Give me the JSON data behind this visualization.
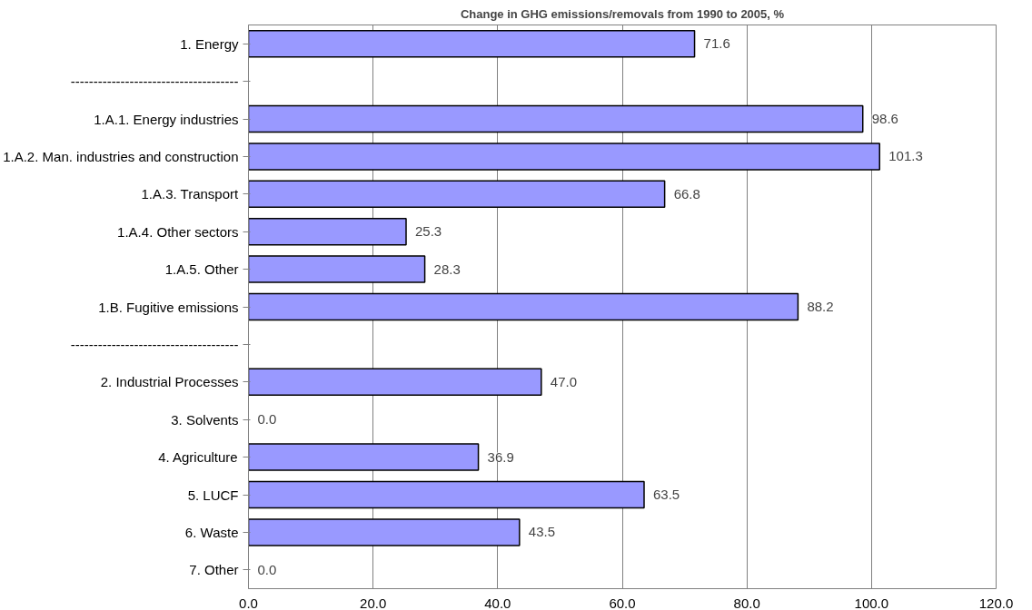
{
  "chart_data": {
    "type": "bar",
    "orientation": "horizontal",
    "title": "Change in GHG emissions/removals from 1990 to 2005, %",
    "categories": [
      "1. Energy",
      "-------------------------------------",
      "1.A.1. Energy industries",
      "1.A.2. Man. industries and construction",
      "1.A.3. Transport",
      "1.A.4. Other sectors",
      "1.A.5. Other",
      "1.B. Fugitive emissions",
      "-------------------------------------",
      "2. Industrial Processes",
      "3. Solvents",
      "4. Agriculture",
      "5. LUCF",
      "6. Waste",
      "7. Other"
    ],
    "values": [
      71.6,
      null,
      98.6,
      101.3,
      66.8,
      25.3,
      28.3,
      88.2,
      null,
      47.0,
      0.0,
      36.9,
      63.5,
      43.5,
      0.0
    ],
    "value_labels": [
      "71.6",
      null,
      "98.6",
      "101.3",
      "66.8",
      "25.3",
      "28.3",
      "88.2",
      null,
      "47.0",
      "0.0",
      "36.9",
      "63.5",
      "43.5",
      "0.0"
    ],
    "color": "#9999ff",
    "xlim": [
      0,
      120
    ],
    "xticks": [
      {
        "value": 0,
        "label": "0.0"
      },
      {
        "value": 20,
        "label": "20.0"
      },
      {
        "value": 40,
        "label": "40.0"
      },
      {
        "value": 60,
        "label": "60.0"
      },
      {
        "value": 80,
        "label": "80.0"
      },
      {
        "value": 100,
        "label": "100.0"
      },
      {
        "value": 120,
        "label": "120.0"
      }
    ],
    "grid": "x"
  }
}
